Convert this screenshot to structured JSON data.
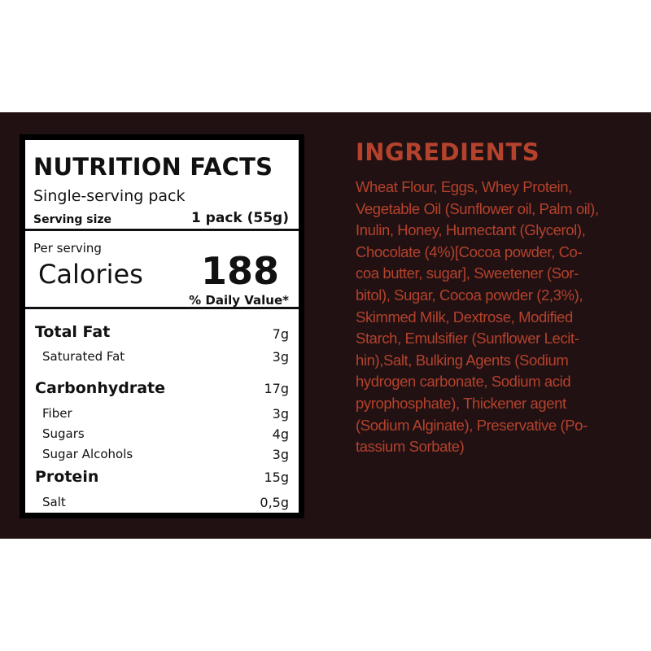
{
  "colors": {
    "background_band": "#211113",
    "accent": "#b4422c",
    "label_bg": "#ffffff",
    "label_border": "#000000"
  },
  "nutrition": {
    "title": "NUTRITION FACTS",
    "subtitle": "Single-serving pack",
    "serving_size_label": "Serving size",
    "serving_size_value": "1 pack (55g)",
    "per_serving": "Per serving",
    "calories_label": "Calories",
    "calories_value": "188",
    "daily_value": "% Daily Value*",
    "rows": [
      {
        "label": "Total Fat",
        "value": "7g"
      },
      {
        "label": "Saturated Fat",
        "value": "3g"
      },
      {
        "label": "Carbonhydrate",
        "value": "17g"
      },
      {
        "label": "Fiber",
        "value": "3g"
      },
      {
        "label": "Sugars",
        "value": "4g"
      },
      {
        "label": "Sugar Alcohols",
        "value": "3g"
      },
      {
        "label": "Protein",
        "value": "15g"
      },
      {
        "label": "Salt",
        "value": "0,5g"
      }
    ]
  },
  "ingredients": {
    "title": "INGREDIENTS",
    "lines": [
      "Wheat Flour, Eggs, Whey Protein,",
      "Vegetable Oil (Sunflower oil, Palm oil),",
      "Inulin, Honey,  Humectant (Glycerol),",
      "Chocolate (4%)[Cocoa powder, Co-",
      "coa butter, sugar], Sweetener (Sor-",
      "bitol), Sugar, Cocoa powder (2,3%),",
      "Skimmed Milk, Dextrose, Modified",
      "Starch, Emulsifier (Sunflower Lecit-",
      "hin),Salt, Bulking  Agents (Sodium",
      "hydrogen carbonate, Sodium acid",
      "pyrophosphate), Thickener  agent",
      "(Sodium Alginate), Preservative (Po-",
      "tassium Sorbate)"
    ]
  }
}
